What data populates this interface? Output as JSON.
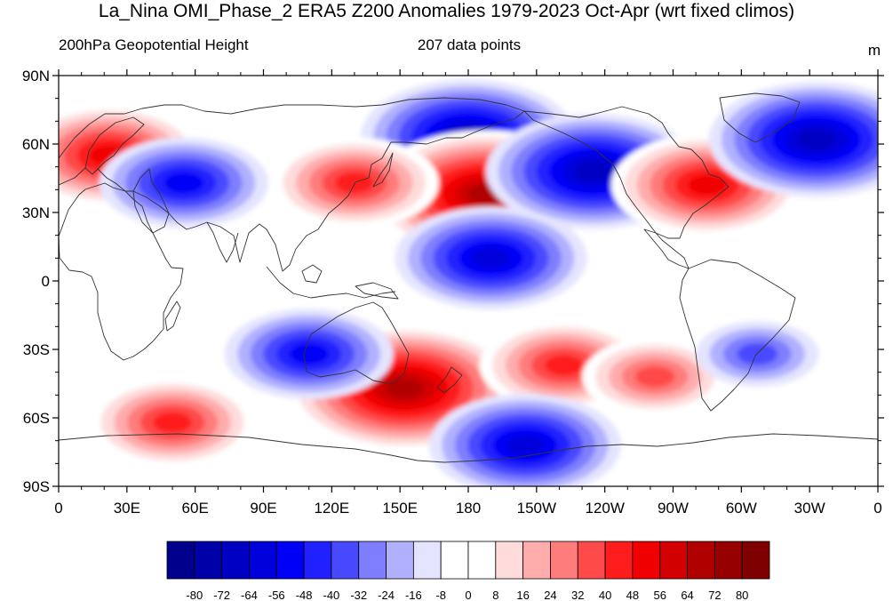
{
  "title": "La_Nina OMI_Phase_2 ERA5 Z200 Anomalies 1979-2023 Oct-Apr (wrt fixed climos)",
  "subtitle_left": "200hPa Geopotential Height",
  "subtitle_center": "207 data points",
  "units": "m",
  "lat_ticks": [
    "90N",
    "60N",
    "30N",
    "0",
    "30S",
    "60S",
    "90S"
  ],
  "lon_ticks": [
    "0",
    "30E",
    "60E",
    "90E",
    "120E",
    "150E",
    "180",
    "150W",
    "120W",
    "90W",
    "60W",
    "30W",
    "0"
  ],
  "colorbar": {
    "labels": [
      "-80",
      "-72",
      "-64",
      "-56",
      "-48",
      "-40",
      "-32",
      "-24",
      "-16",
      "-8",
      "0",
      "8",
      "16",
      "24",
      "32",
      "40",
      "48",
      "56",
      "64",
      "72",
      "80"
    ],
    "colors": [
      "#00008c",
      "#0000a8",
      "#0000c2",
      "#0000dc",
      "#0000f6",
      "#2121ff",
      "#4848ff",
      "#7e7eff",
      "#b0b0ff",
      "#e4e4ff",
      "#ffffff",
      "#ffffff",
      "#ffdcdc",
      "#ffacac",
      "#ff7c7c",
      "#ff4a4a",
      "#ff1c1c",
      "#f00000",
      "#d20000",
      "#b00000",
      "#960000",
      "#7e0000"
    ]
  },
  "anomaly_features": [
    {
      "name": "north-pacific-low",
      "lon": 180,
      "lat": 63,
      "value": -56
    },
    {
      "name": "north-pacific-high",
      "lon": 188,
      "lat": 38,
      "value": 64
    },
    {
      "name": "gulf-of-alaska-low",
      "lon": 235,
      "lat": 48,
      "value": -56
    },
    {
      "name": "eastern-north-america-high",
      "lon": 285,
      "lat": 42,
      "value": 48
    },
    {
      "name": "north-atlantic-low",
      "lon": 333,
      "lat": 62,
      "value": -56
    },
    {
      "name": "europe-high",
      "lon": 22,
      "lat": 55,
      "value": 48
    },
    {
      "name": "central-asia-low",
      "lon": 55,
      "lat": 43,
      "value": -40
    },
    {
      "name": "japan-high",
      "lon": 130,
      "lat": 43,
      "value": 40
    },
    {
      "name": "subtropical-pacific-low",
      "lon": 190,
      "lat": 10,
      "value": -48
    },
    {
      "name": "tasman-sea-high",
      "lon": 152,
      "lat": -47,
      "value": 64
    },
    {
      "name": "australia-low",
      "lon": 110,
      "lat": -32,
      "value": -40
    },
    {
      "name": "south-pacific-high",
      "lon": 222,
      "lat": -37,
      "value": 40
    },
    {
      "name": "southeast-pacific-high",
      "lon": 262,
      "lat": -42,
      "value": 32
    },
    {
      "name": "amundsen-sea-low",
      "lon": 205,
      "lat": -72,
      "value": -48
    },
    {
      "name": "southern-indian-ocean-high",
      "lon": 50,
      "lat": -62,
      "value": 40
    },
    {
      "name": "south-america-low",
      "lon": 307,
      "lat": -32,
      "value": -24
    }
  ]
}
